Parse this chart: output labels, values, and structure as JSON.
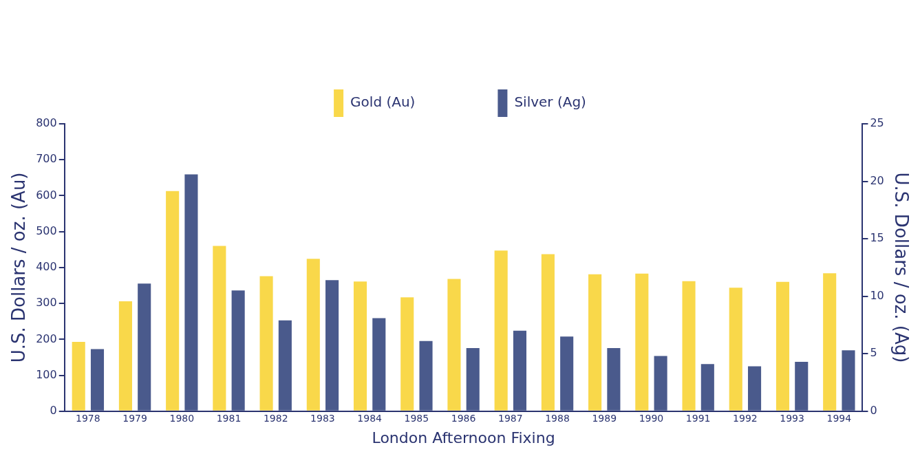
{
  "chart_data": {
    "type": "bar",
    "xlabel": "London Afternoon Fixing",
    "ylabel": "U.S. Dollars / oz. (Au)",
    "y2label": "U.S. Dollars / oz. (Ag)",
    "categories": [
      "1978",
      "1979",
      "1980",
      "1981",
      "1982",
      "1983",
      "1984",
      "1985",
      "1986",
      "1987",
      "1988",
      "1989",
      "1990",
      "1991",
      "1992",
      "1993",
      "1994"
    ],
    "series": [
      {
        "name": "Gold (Au)",
        "color": "#f9d84a",
        "values": [
          193,
          306,
          613,
          460,
          376,
          424,
          361,
          317,
          368,
          447,
          437,
          381,
          383,
          362,
          344,
          360,
          384
        ]
      },
      {
        "name": "Silver (Ag)",
        "color": "#4a5a8c",
        "axis": "y2",
        "values": [
          5.4,
          11.1,
          20.6,
          10.5,
          7.9,
          11.4,
          8.1,
          6.1,
          5.5,
          7.0,
          6.5,
          5.5,
          4.8,
          4.1,
          3.9,
          4.3,
          5.3
        ]
      }
    ],
    "ylim": [
      0,
      800
    ],
    "yticks": [
      0,
      100,
      200,
      300,
      400,
      500,
      600,
      700,
      800
    ],
    "y2lim": [
      0,
      25
    ],
    "y2ticks": [
      0,
      5,
      10,
      15,
      20,
      25
    ],
    "grid": false,
    "legend": "top"
  }
}
